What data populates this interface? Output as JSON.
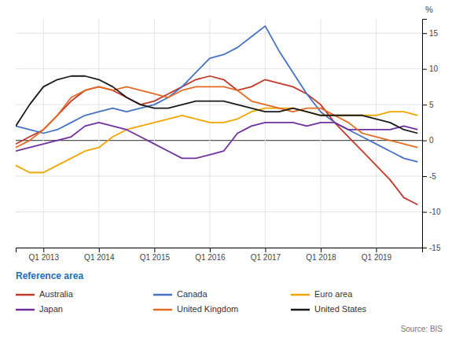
{
  "chart_data": {
    "type": "line",
    "y_label": "%",
    "legend_title": "Reference area",
    "source": "Source: BIS",
    "grid": true,
    "xlim": [
      2012.5,
      2019.83
    ],
    "xticks": [
      {
        "value": 2013.0,
        "label": "Q1 2013"
      },
      {
        "value": 2014.0,
        "label": "Q1 2014"
      },
      {
        "value": 2015.0,
        "label": "Q1 2015"
      },
      {
        "value": 2016.0,
        "label": "Q1 2016"
      },
      {
        "value": 2017.0,
        "label": "Q1 2017"
      },
      {
        "value": 2018.0,
        "label": "Q1 2018"
      },
      {
        "value": 2019.0,
        "label": "Q1 2019"
      }
    ],
    "ylim": [
      -15,
      17
    ],
    "yticks": [
      -15,
      -10,
      -5,
      0,
      5,
      10,
      15
    ],
    "x": [
      2012.5,
      2012.75,
      2013.0,
      2013.25,
      2013.5,
      2013.75,
      2014.0,
      2014.25,
      2014.5,
      2014.75,
      2015.0,
      2015.25,
      2015.5,
      2015.75,
      2016.0,
      2016.25,
      2016.5,
      2016.75,
      2017.0,
      2017.25,
      2017.5,
      2017.75,
      2018.0,
      2018.25,
      2018.5,
      2018.75,
      2019.0,
      2019.25,
      2019.5,
      2019.75
    ],
    "series": [
      {
        "name": "Australia",
        "color": "#c0392b",
        "values": [
          -0.5,
          0.5,
          1.5,
          3.5,
          5.5,
          7.0,
          7.5,
          7.0,
          6.0,
          5.0,
          5.5,
          6.5,
          7.5,
          8.5,
          9.0,
          8.5,
          7.0,
          7.5,
          8.5,
          8.0,
          7.5,
          6.5,
          5.0,
          2.5,
          0.5,
          -1.5,
          -3.5,
          -5.5,
          -8.0,
          -9.0
        ]
      },
      {
        "name": "Canada",
        "color": "#4472c4",
        "values": [
          2.0,
          1.5,
          1.0,
          1.5,
          2.5,
          3.5,
          4.0,
          4.5,
          4.0,
          4.5,
          5.0,
          6.0,
          7.5,
          9.5,
          11.5,
          12.0,
          13.0,
          14.5,
          16.0,
          12.5,
          9.5,
          6.5,
          4.0,
          2.5,
          1.5,
          0.5,
          -0.5,
          -1.5,
          -2.5,
          -3.0
        ]
      },
      {
        "name": "Euro area",
        "color": "#f0a500",
        "values": [
          -3.5,
          -4.5,
          -4.5,
          -3.5,
          -2.5,
          -1.5,
          -1.0,
          0.5,
          1.5,
          2.0,
          2.5,
          3.0,
          3.5,
          3.0,
          2.5,
          2.5,
          3.0,
          4.0,
          4.5,
          4.5,
          4.5,
          4.0,
          3.5,
          3.5,
          3.5,
          3.5,
          3.5,
          4.0,
          4.0,
          3.5
        ]
      },
      {
        "name": "Japan",
        "color": "#7030a0",
        "values": [
          -1.5,
          -1.0,
          -0.5,
          0.0,
          0.5,
          2.0,
          2.5,
          2.0,
          1.5,
          0.5,
          -0.5,
          -1.5,
          -2.5,
          -2.5,
          -2.0,
          -1.5,
          1.0,
          2.0,
          2.5,
          2.5,
          2.5,
          2.0,
          2.5,
          2.5,
          1.5,
          1.5,
          1.5,
          1.5,
          2.0,
          1.5
        ]
      },
      {
        "name": "United Kingdom",
        "color": "#e36b24",
        "values": [
          -1.0,
          0.0,
          1.5,
          3.5,
          6.0,
          7.0,
          7.5,
          7.0,
          7.5,
          7.0,
          6.5,
          6.0,
          7.0,
          7.5,
          7.5,
          7.5,
          7.0,
          5.5,
          5.0,
          4.5,
          4.0,
          4.5,
          4.5,
          3.5,
          2.5,
          1.0,
          0.5,
          0.0,
          -0.5,
          -1.0
        ]
      },
      {
        "name": "United States",
        "color": "#1a1a1a",
        "values": [
          2.0,
          5.0,
          7.5,
          8.5,
          9.0,
          9.0,
          8.5,
          7.5,
          6.0,
          5.0,
          4.5,
          4.5,
          5.0,
          5.5,
          5.5,
          5.5,
          5.0,
          4.5,
          4.0,
          4.0,
          4.5,
          4.0,
          3.5,
          3.5,
          3.5,
          3.5,
          3.0,
          2.5,
          1.5,
          1.0
        ]
      }
    ]
  }
}
